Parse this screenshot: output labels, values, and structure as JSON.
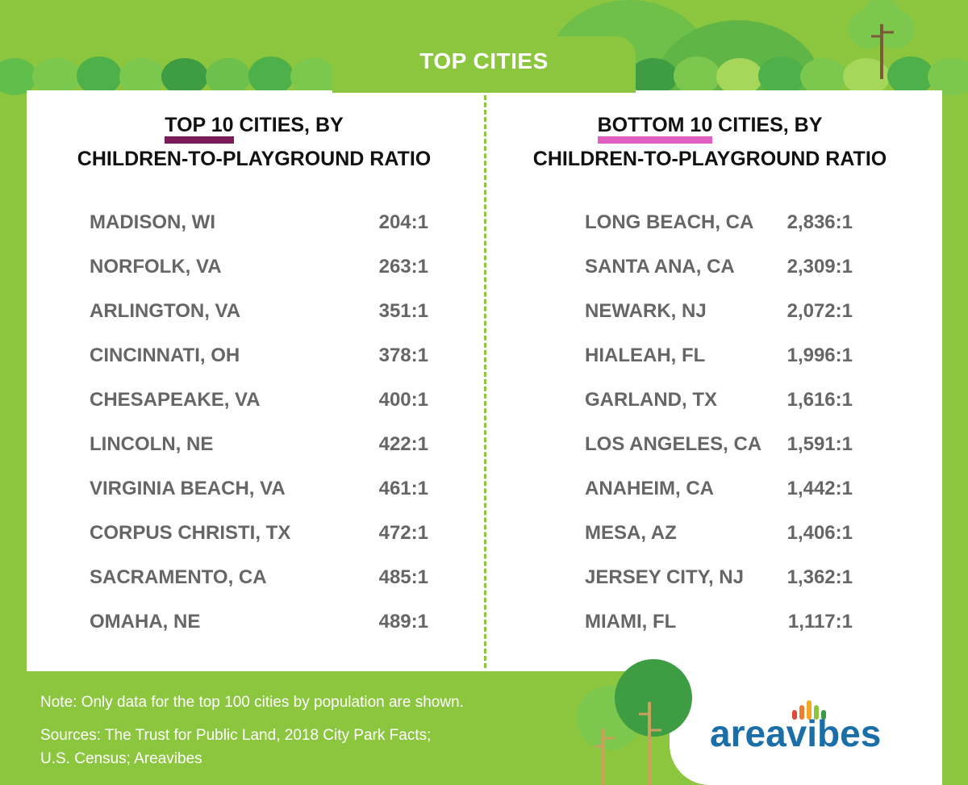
{
  "header": {
    "tab_label": "TOP CITIES"
  },
  "top_list": {
    "heading_highlight": "TOP 10",
    "heading_rest": " CITIES, BY",
    "heading_line2": "CHILDREN-TO-PLAYGROUND RATIO",
    "rows": [
      {
        "city": "MADISON, WI",
        "ratio": "204:1"
      },
      {
        "city": "NORFOLK, VA",
        "ratio": "263:1"
      },
      {
        "city": "ARLINGTON, VA",
        "ratio": "351:1"
      },
      {
        "city": "CINCINNATI, OH",
        "ratio": "378:1"
      },
      {
        "city": "CHESAPEAKE, VA",
        "ratio": "400:1"
      },
      {
        "city": "LINCOLN, NE",
        "ratio": "422:1"
      },
      {
        "city": "VIRGINIA BEACH, VA",
        "ratio": "461:1"
      },
      {
        "city": "CORPUS CHRISTI, TX",
        "ratio": "472:1"
      },
      {
        "city": "SACRAMENTO, CA",
        "ratio": "485:1"
      },
      {
        "city": "OMAHA, NE",
        "ratio": "489:1"
      }
    ]
  },
  "bottom_list": {
    "heading_highlight": "BOTTOM 10",
    "heading_rest": " CITIES, BY",
    "heading_line2": "CHILDREN-TO-PLAYGROUND RATIO",
    "rows": [
      {
        "city": "LONG BEACH, CA",
        "ratio": "2,836:1"
      },
      {
        "city": "SANTA ANA, CA",
        "ratio": "2,309:1"
      },
      {
        "city": "NEWARK, NJ",
        "ratio": "2,072:1"
      },
      {
        "city": "HIALEAH, FL",
        "ratio": "1,996:1"
      },
      {
        "city": "GARLAND, TX",
        "ratio": "1,616:1"
      },
      {
        "city": "LOS ANGELES, CA",
        "ratio": "1,591:1"
      },
      {
        "city": "ANAHEIM, CA",
        "ratio": "1,442:1"
      },
      {
        "city": "MESA, AZ",
        "ratio": "1,406:1"
      },
      {
        "city": "JERSEY CITY, NJ",
        "ratio": "1,362:1"
      },
      {
        "city": "MIAMI, FL",
        "ratio": "1,117:1"
      }
    ]
  },
  "footer": {
    "note": "Note: Only data for the top 100 cities by population are shown.",
    "sources_line1": "Sources: The Trust for Public Land, 2018 City Park Facts;",
    "sources_line2": "U.S. Census; Areavibes"
  },
  "logo": {
    "text": "areavibes",
    "icon": "areavibes-bars-logo",
    "bar_colors": [
      "#e0483c",
      "#f07d2e",
      "#f5a623",
      "#8cc63f",
      "#3a9b46"
    ]
  },
  "colors": {
    "background": "#8cc63f",
    "panel": "#ffffff",
    "row_text": "#666666",
    "heading_text": "#111111",
    "highlight_top": "#7b1b5a",
    "highlight_bottom": "#e05fc0",
    "logo_blue": "#1a6fa8"
  }
}
